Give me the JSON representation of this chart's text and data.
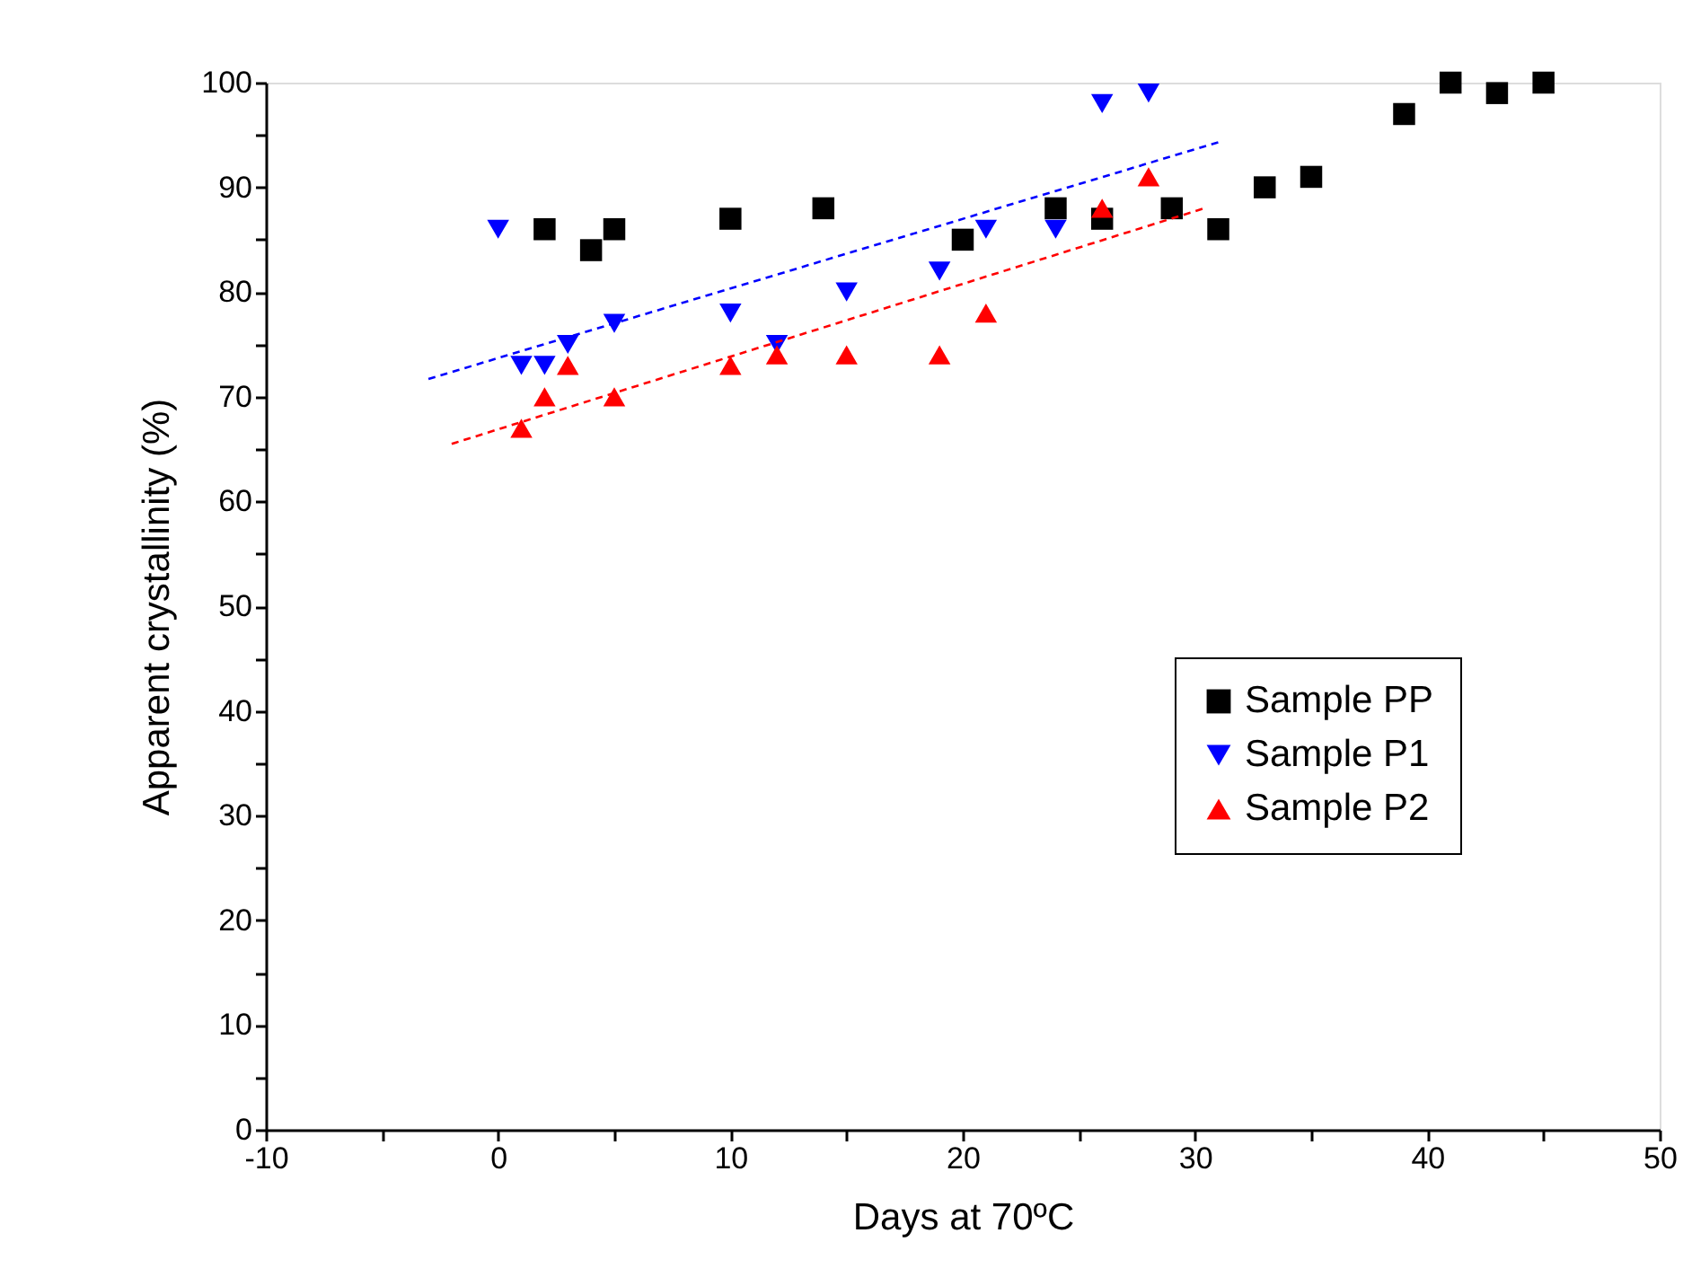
{
  "chart_data": {
    "type": "scatter",
    "xlabel": "Days at 70ºC",
    "ylabel": "Apparent crystallinity (%)",
    "xlim": [
      -10,
      50
    ],
    "ylim": [
      0,
      100
    ],
    "xticks": [
      -10,
      {
        "value": -5,
        "label": null
      },
      0,
      {
        "value": 5,
        "label": null
      },
      10,
      {
        "value": 15,
        "label": null
      },
      20,
      {
        "value": 25,
        "label": null
      },
      30,
      {
        "value": 35,
        "label": null
      },
      40,
      {
        "value": 45,
        "label": null
      },
      50
    ],
    "yticks": [
      0,
      {
        "value": 5,
        "label": null
      },
      10,
      {
        "value": 15,
        "label": null
      },
      20,
      {
        "value": 25,
        "label": null
      },
      30,
      {
        "value": 35,
        "label": null
      },
      40,
      {
        "value": 45,
        "label": null
      },
      50,
      {
        "value": 55,
        "label": null
      },
      60,
      {
        "value": 65,
        "label": null
      },
      70,
      {
        "value": 75,
        "label": null
      },
      80,
      {
        "value": 85,
        "label": null
      },
      90,
      {
        "value": 95,
        "label": null
      },
      100
    ],
    "grid": false,
    "legend": "right",
    "series": [
      {
        "name": "Sample PP",
        "color": "#000000",
        "marker": "square",
        "x": [
          2,
          4,
          5,
          10,
          14,
          20,
          24,
          26,
          29,
          31,
          33,
          35,
          39,
          41,
          43,
          45
        ],
        "values": [
          86,
          84,
          86,
          87,
          88,
          85,
          88,
          87,
          88,
          86,
          90,
          91,
          97,
          100,
          99,
          100
        ]
      },
      {
        "name": "Sample P1",
        "color": "#0000ff",
        "marker": "triangle-down",
        "x": [
          0,
          1,
          2,
          3,
          5,
          10,
          12,
          15,
          19,
          21,
          24,
          26,
          28
        ],
        "values": [
          86,
          73,
          73,
          75,
          77,
          78,
          75,
          80,
          82,
          86,
          86,
          98,
          99
        ]
      },
      {
        "name": "Sample P2",
        "color": "#ff0000",
        "marker": "triangle",
        "x": [
          1,
          2,
          3,
          5,
          10,
          12,
          15,
          19,
          21,
          26,
          28
        ],
        "values": [
          67,
          70,
          73,
          70,
          73,
          74,
          74,
          74,
          78,
          88,
          91
        ]
      },
      {
        "type": "line",
        "color": "#0000ff",
        "line_style": "dashed",
        "marker": "none",
        "x": [
          -3,
          31
        ],
        "values": [
          71.7,
          94.3
        ]
      },
      {
        "type": "line",
        "color": "#ff0000",
        "line_style": "dashed",
        "marker": "none",
        "x": [
          -2,
          30.4
        ],
        "values": [
          65.5,
          88
        ]
      }
    ]
  }
}
